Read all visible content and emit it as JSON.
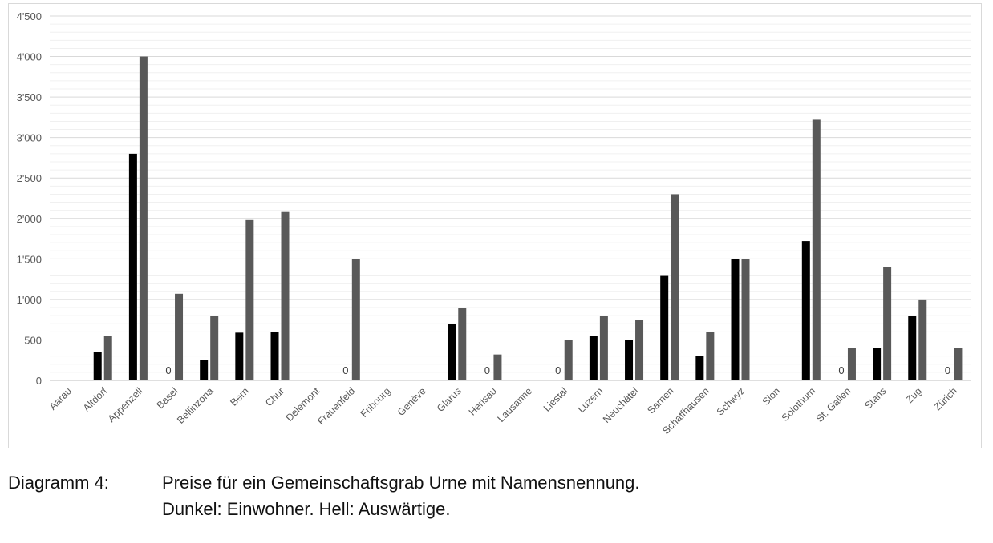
{
  "chart_data": {
    "type": "bar",
    "title": "",
    "xlabel": "",
    "ylabel": "",
    "ylim": [
      0,
      4500
    ],
    "yticks": [
      "0",
      "500",
      "1'000",
      "1'500",
      "2'000",
      "2'500",
      "3'000",
      "3'500",
      "4'000",
      "4'500"
    ],
    "grid": true,
    "categories": [
      "Aarau",
      "Altdorf",
      "Appenzell",
      "Basel",
      "Bellinzona",
      "Bern",
      "Chur",
      "Delémont",
      "Frauenfeld",
      "Fribourg",
      "Genève",
      "Glarus",
      "Herisau",
      "Lausanne",
      "Liestal",
      "Luzern",
      "Neuchâtel",
      "Sarnen",
      "Schaffhausen",
      "Schwyz",
      "Sion",
      "Solothurn",
      "St. Gallen",
      "Stans",
      "Zug",
      "Zürich"
    ],
    "series": [
      {
        "name": "Einwohner",
        "color": "#000000",
        "values": [
          null,
          350,
          2800,
          0,
          250,
          590,
          600,
          null,
          0,
          null,
          null,
          700,
          0,
          null,
          0,
          550,
          500,
          1300,
          300,
          1500,
          null,
          1720,
          0,
          400,
          800,
          0
        ]
      },
      {
        "name": "Auswärtige",
        "color": "#595959",
        "values": [
          null,
          550,
          4000,
          1070,
          800,
          1980,
          2080,
          null,
          1500,
          null,
          null,
          900,
          320,
          null,
          500,
          800,
          750,
          2300,
          600,
          1500,
          null,
          3220,
          400,
          1400,
          1000,
          400
        ]
      }
    ],
    "zero_label": "0"
  },
  "caption": {
    "label": "Diagramm 4:",
    "line1": "Preise für ein Gemeinschaftsgrab Urne mit Namensnennung.",
    "line2": "Dunkel: Einwohner. Hell: Auswärtige."
  }
}
